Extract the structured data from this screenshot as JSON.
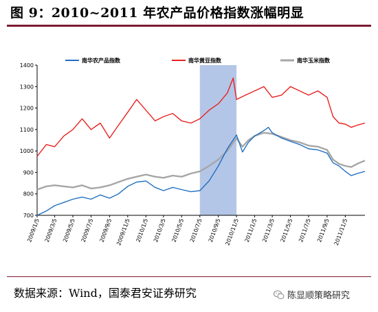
{
  "header": {
    "title": "图 9：2010~2011 年农产品价格指数涨幅明显"
  },
  "footer": {
    "source": "数据来源：Wind，国泰君安证券研究",
    "watermark": "陈显顺策略研究"
  },
  "icons": {
    "watermark_icon": "wechat-icon"
  },
  "colors": {
    "title_rule": "#7b1a2f",
    "highlight": "#b4c6e7"
  },
  "chart_data": {
    "type": "line",
    "x_type": "date",
    "x_tick_labels": [
      "2009/1/5",
      "2009/3/5",
      "2009/5/5",
      "2009/7/5",
      "2009/9/5",
      "2009/11/5",
      "2010/1/5",
      "2010/3/5",
      "2010/5/5",
      "2010/7/5",
      "2010/9/5",
      "2010/11/5",
      "2011/1/5",
      "2011/3/5",
      "2011/5/5",
      "2011/7/5",
      "2011/9/5",
      "2011/11/5"
    ],
    "x_range": [
      "2009/1/5",
      "2012/1/10"
    ],
    "ylim": [
      700,
      1400
    ],
    "y_ticks": [
      700,
      800,
      900,
      1000,
      1100,
      1200,
      1300,
      1400
    ],
    "grid": false,
    "legend_position": "top",
    "highlight_range": [
      "2010/7/5",
      "2010/11/5"
    ],
    "series": [
      {
        "name": "南华农产品指数",
        "color": "#1f6fc1",
        "points": [
          [
            "2009/1/5",
            700
          ],
          [
            "2009/2/5",
            720
          ],
          [
            "2009/3/5",
            745
          ],
          [
            "2009/4/5",
            760
          ],
          [
            "2009/5/5",
            775
          ],
          [
            "2009/6/5",
            785
          ],
          [
            "2009/7/5",
            775
          ],
          [
            "2009/8/5",
            795
          ],
          [
            "2009/9/5",
            780
          ],
          [
            "2009/10/5",
            800
          ],
          [
            "2009/11/5",
            835
          ],
          [
            "2009/12/5",
            855
          ],
          [
            "2010/1/5",
            860
          ],
          [
            "2010/2/5",
            830
          ],
          [
            "2010/3/5",
            815
          ],
          [
            "2010/4/5",
            830
          ],
          [
            "2010/5/5",
            820
          ],
          [
            "2010/6/5",
            810
          ],
          [
            "2010/7/5",
            815
          ],
          [
            "2010/8/5",
            860
          ],
          [
            "2010/9/5",
            930
          ],
          [
            "2010/10/5",
            1010
          ],
          [
            "2010/11/5",
            1075
          ],
          [
            "2010/11/25",
            995
          ],
          [
            "2010/12/15",
            1040
          ],
          [
            "2011/1/5",
            1070
          ],
          [
            "2011/2/5",
            1095
          ],
          [
            "2011/2/20",
            1110
          ],
          [
            "2011/3/5",
            1085
          ],
          [
            "2011/4/5",
            1060
          ],
          [
            "2011/5/5",
            1045
          ],
          [
            "2011/6/5",
            1030
          ],
          [
            "2011/7/5",
            1010
          ],
          [
            "2011/8/5",
            1005
          ],
          [
            "2011/9/5",
            990
          ],
          [
            "2011/9/25",
            945
          ],
          [
            "2011/10/15",
            930
          ],
          [
            "2011/11/5",
            905
          ],
          [
            "2011/11/25",
            885
          ],
          [
            "2011/12/15",
            895
          ],
          [
            "2012/1/10",
            905
          ]
        ]
      },
      {
        "name": "南华黄豆指数",
        "color": "#e8201e",
        "points": [
          [
            "2009/1/5",
            975
          ],
          [
            "2009/2/5",
            1030
          ],
          [
            "2009/3/5",
            1020
          ],
          [
            "2009/4/5",
            1070
          ],
          [
            "2009/5/5",
            1100
          ],
          [
            "2009/6/5",
            1150
          ],
          [
            "2009/7/5",
            1100
          ],
          [
            "2009/8/5",
            1130
          ],
          [
            "2009/9/5",
            1060
          ],
          [
            "2009/10/5",
            1120
          ],
          [
            "2009/11/5",
            1180
          ],
          [
            "2009/12/5",
            1240
          ],
          [
            "2010/1/5",
            1190
          ],
          [
            "2010/2/5",
            1140
          ],
          [
            "2010/3/5",
            1160
          ],
          [
            "2010/4/5",
            1175
          ],
          [
            "2010/5/5",
            1140
          ],
          [
            "2010/6/5",
            1130
          ],
          [
            "2010/7/5",
            1150
          ],
          [
            "2010/8/5",
            1190
          ],
          [
            "2010/9/5",
            1220
          ],
          [
            "2010/10/5",
            1270
          ],
          [
            "2010/10/25",
            1340
          ],
          [
            "2010/11/5",
            1240
          ],
          [
            "2010/12/5",
            1260
          ],
          [
            "2011/1/5",
            1280
          ],
          [
            "2011/2/5",
            1300
          ],
          [
            "2011/3/5",
            1250
          ],
          [
            "2011/4/5",
            1260
          ],
          [
            "2011/5/5",
            1300
          ],
          [
            "2011/6/5",
            1280
          ],
          [
            "2011/7/5",
            1260
          ],
          [
            "2011/8/5",
            1280
          ],
          [
            "2011/9/5",
            1250
          ],
          [
            "2011/9/25",
            1160
          ],
          [
            "2011/10/15",
            1130
          ],
          [
            "2011/11/5",
            1125
          ],
          [
            "2011/11/25",
            1110
          ],
          [
            "2011/12/15",
            1120
          ],
          [
            "2012/1/10",
            1130
          ]
        ]
      },
      {
        "name": "南华玉米指数",
        "color": "#a6a6a6",
        "points": [
          [
            "2009/1/5",
            820
          ],
          [
            "2009/2/5",
            835
          ],
          [
            "2009/3/5",
            840
          ],
          [
            "2009/4/5",
            835
          ],
          [
            "2009/5/5",
            830
          ],
          [
            "2009/6/5",
            840
          ],
          [
            "2009/7/5",
            825
          ],
          [
            "2009/8/5",
            830
          ],
          [
            "2009/9/5",
            840
          ],
          [
            "2009/10/5",
            855
          ],
          [
            "2009/11/5",
            870
          ],
          [
            "2009/12/5",
            880
          ],
          [
            "2010/1/5",
            890
          ],
          [
            "2010/2/5",
            880
          ],
          [
            "2010/3/5",
            875
          ],
          [
            "2010/4/5",
            885
          ],
          [
            "2010/5/5",
            880
          ],
          [
            "2010/6/5",
            895
          ],
          [
            "2010/7/5",
            905
          ],
          [
            "2010/8/5",
            930
          ],
          [
            "2010/9/5",
            960
          ],
          [
            "2010/10/5",
            1000
          ],
          [
            "2010/11/5",
            1060
          ],
          [
            "2010/11/25",
            1020
          ],
          [
            "2010/12/15",
            1050
          ],
          [
            "2011/1/5",
            1070
          ],
          [
            "2011/2/5",
            1085
          ],
          [
            "2011/3/5",
            1080
          ],
          [
            "2011/4/5",
            1065
          ],
          [
            "2011/5/5",
            1050
          ],
          [
            "2011/6/5",
            1040
          ],
          [
            "2011/7/5",
            1025
          ],
          [
            "2011/8/5",
            1020
          ],
          [
            "2011/9/5",
            1005
          ],
          [
            "2011/9/25",
            960
          ],
          [
            "2011/10/15",
            940
          ],
          [
            "2011/11/5",
            930
          ],
          [
            "2011/11/25",
            925
          ],
          [
            "2011/12/15",
            940
          ],
          [
            "2012/1/10",
            955
          ]
        ]
      }
    ]
  }
}
